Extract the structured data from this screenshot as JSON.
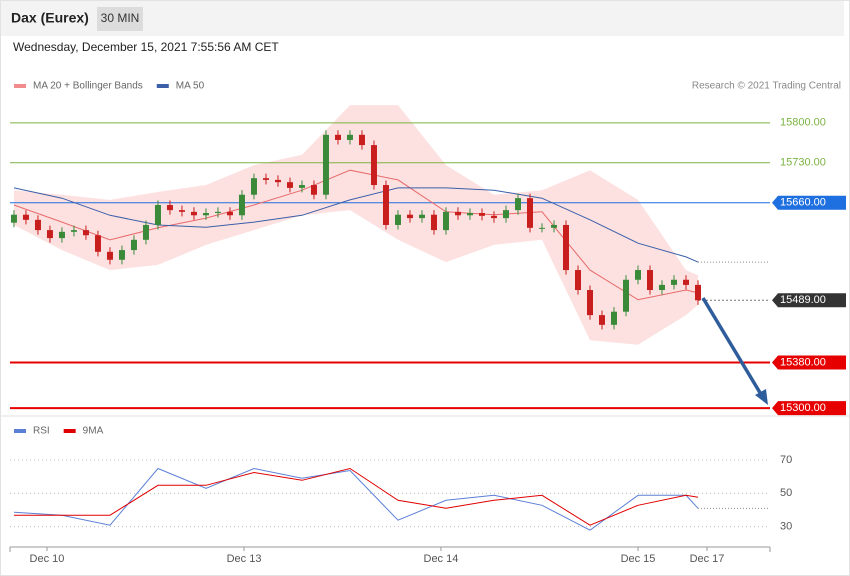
{
  "header": {
    "title": "Dax (Eurex)",
    "timeframe": "30 MIN",
    "timestamp": "Wednesday, December 15, 2021 7:55:56 AM CET"
  },
  "chart_data": [
    {
      "type": "candlestick",
      "credit": "Research © 2021 Trading Central",
      "xlim": [
        -0.33,
        63
      ],
      "ylim": [
        15288,
        15840
      ],
      "up_color": "#3a8a3a",
      "down_color": "#c81e1e",
      "open": [
        15625,
        15639,
        15630,
        15612,
        15598,
        15609,
        15612,
        15603,
        15574,
        15560,
        15577,
        15595,
        15621,
        15656,
        15647,
        15644,
        15638,
        15642,
        15644,
        15638,
        15674,
        15703,
        15700,
        15696,
        15686,
        15691,
        15674,
        15779,
        15770,
        15779,
        15761,
        15691,
        15621,
        15639,
        15633,
        15639,
        15612,
        15644,
        15638,
        15642,
        15637,
        15633,
        15647,
        15668,
        15616,
        15616,
        15621,
        15542,
        15507,
        15463,
        15446,
        15469,
        15525,
        15542,
        15507,
        15516,
        15525,
        15516
      ],
      "high": [
        15647,
        15647,
        15638,
        15620,
        15617,
        15620,
        15620,
        15611,
        15582,
        15585,
        15603,
        15629,
        15664,
        15664,
        15655,
        15652,
        15650,
        15652,
        15652,
        15682,
        15711,
        15711,
        15708,
        15704,
        15699,
        15699,
        15787,
        15787,
        15787,
        15787,
        15769,
        15699,
        15647,
        15647,
        15647,
        15647,
        15652,
        15652,
        15650,
        15650,
        15645,
        15655,
        15676,
        15676,
        15624,
        15629,
        15629,
        15550,
        15515,
        15471,
        15477,
        15533,
        15550,
        15550,
        15524,
        15533,
        15533,
        15524
      ],
      "low": [
        15617,
        15622,
        15604,
        15590,
        15590,
        15601,
        15595,
        15566,
        15552,
        15552,
        15569,
        15587,
        15613,
        15639,
        15636,
        15630,
        15630,
        15634,
        15630,
        15630,
        15666,
        15692,
        15688,
        15678,
        15678,
        15666,
        15666,
        15762,
        15762,
        15753,
        15683,
        15613,
        15613,
        15625,
        15625,
        15604,
        15604,
        15630,
        15630,
        15629,
        15625,
        15625,
        15639,
        15608,
        15608,
        15608,
        15534,
        15499,
        15455,
        15438,
        15438,
        15461,
        15517,
        15499,
        15499,
        15508,
        15508,
        15481
      ],
      "close": [
        15639,
        15630,
        15612,
        15598,
        15609,
        15612,
        15603,
        15574,
        15560,
        15577,
        15595,
        15621,
        15656,
        15647,
        15644,
        15638,
        15642,
        15644,
        15638,
        15674,
        15703,
        15700,
        15696,
        15686,
        15691,
        15674,
        15779,
        15770,
        15779,
        15761,
        15691,
        15621,
        15639,
        15633,
        15639,
        15612,
        15644,
        15638,
        15642,
        15637,
        15633,
        15647,
        15668,
        15616,
        15616,
        15621,
        15542,
        15507,
        15463,
        15446,
        15469,
        15525,
        15542,
        15507,
        15516,
        15525,
        15516,
        15489
      ],
      "series": [
        {
          "name": "MA 20 + Bollinger Bands",
          "color": "#e86a6a",
          "band_color": "#fde1e1",
          "x": [
            0,
            4,
            8,
            12,
            16,
            20,
            24,
            28,
            32,
            36,
            40,
            44,
            48,
            52,
            56,
            57
          ],
          "values": [
            15656,
            15626,
            15595,
            15616,
            15633,
            15656,
            15682,
            15717,
            15700,
            15644,
            15639,
            15644,
            15542,
            15490,
            15507,
            15502
          ],
          "upper": [
            15682,
            15674,
            15665,
            15679,
            15691,
            15726,
            15744,
            15831,
            15831,
            15726,
            15674,
            15682,
            15717,
            15665,
            15542,
            15533
          ],
          "lower": [
            15621,
            15577,
            15542,
            15551,
            15586,
            15612,
            15638,
            15647,
            15595,
            15556,
            15586,
            15595,
            15419,
            15411,
            15463,
            15481
          ]
        },
        {
          "name": "MA 50",
          "color": "#3a5fa8",
          "x": [
            0,
            4,
            8,
            12,
            16,
            20,
            24,
            28,
            32,
            36,
            40,
            44,
            48,
            52,
            56,
            57
          ],
          "values": [
            15686,
            15668,
            15638,
            15621,
            15617,
            15626,
            15638,
            15665,
            15686,
            15686,
            15682,
            15668,
            15630,
            15589,
            15565,
            15556
          ]
        }
      ],
      "levels": [
        {
          "value": 15800,
          "label": "15800.00",
          "color": "#7cb342",
          "kind": "line"
        },
        {
          "value": 15730,
          "label": "15730.00",
          "color": "#7cb342",
          "kind": "line"
        },
        {
          "value": 15660,
          "label": "15660.00",
          "color": "#1e6fe0",
          "kind": "box"
        },
        {
          "value": 15489,
          "label": "15489.00",
          "color": "#333333",
          "kind": "dotted"
        },
        {
          "value": 15380,
          "label": "15380.00",
          "color": "#e60000",
          "kind": "bold"
        },
        {
          "value": 15300,
          "label": "15300.00",
          "color": "#e60000",
          "kind": "bold"
        }
      ]
    },
    {
      "type": "line",
      "xlim": [
        -0.33,
        63
      ],
      "ylim": [
        19,
        79
      ],
      "yticks": [
        30,
        50,
        70
      ],
      "grid": true,
      "xticks": [
        {
          "value": 2.75,
          "label": "Dec 10"
        },
        {
          "value": 19.17,
          "label": "Dec 13"
        },
        {
          "value": 35.58,
          "label": "Dec 14"
        },
        {
          "value": 52,
          "label": "Dec 15"
        },
        {
          "value": 57.75,
          "label": "Dec 17"
        }
      ],
      "series": [
        {
          "name": "RSI",
          "color": "#5b7fd6",
          "x": [
            0,
            4,
            8,
            12,
            16,
            20,
            24,
            28,
            32,
            36,
            40,
            44,
            48,
            52,
            56,
            57
          ],
          "values": [
            38.7,
            36.9,
            30.9,
            64.9,
            53,
            64.9,
            59,
            63.7,
            33.9,
            45.8,
            48.8,
            42.8,
            27.9,
            48.8,
            48.8,
            41
          ]
        },
        {
          "name": "9MA",
          "color": "#e00000",
          "x": [
            0,
            4,
            8,
            12,
            16,
            20,
            24,
            28,
            32,
            36,
            40,
            44,
            48,
            52,
            56,
            57
          ],
          "values": [
            36.9,
            36.9,
            36.9,
            54.8,
            54.8,
            62.5,
            57.8,
            64.9,
            45.8,
            41,
            45.8,
            48.8,
            30.9,
            42.8,
            48.8,
            47.6
          ]
        }
      ]
    }
  ]
}
